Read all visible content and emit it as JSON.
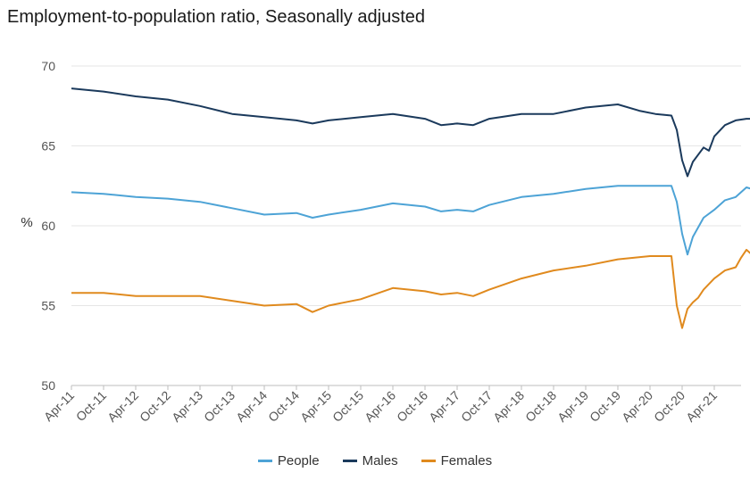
{
  "chart_data": {
    "type": "line",
    "title": "Employment-to-population ratio, Seasonally adjusted",
    "ylabel": "%",
    "xlabel": "",
    "ylim": [
      50,
      70
    ],
    "yticks": [
      "70",
      "65",
      "60",
      "55",
      "50"
    ],
    "xticks": [
      "Apr-11",
      "Oct-11",
      "Apr-12",
      "Oct-12",
      "Apr-13",
      "Oct-13",
      "Apr-14",
      "Oct-14",
      "Apr-15",
      "Oct-15",
      "Apr-16",
      "Oct-16",
      "Apr-17",
      "Oct-17",
      "Apr-18",
      "Oct-18",
      "Apr-19",
      "Oct-19",
      "Apr-20",
      "Oct-20",
      "Apr-21"
    ],
    "grid": true,
    "legend_position": "bottom",
    "series": [
      {
        "name": "People",
        "color": "#4da3d6",
        "points": [
          [
            0,
            62.1
          ],
          [
            6,
            62.0
          ],
          [
            12,
            61.8
          ],
          [
            18,
            61.7
          ],
          [
            24,
            61.5
          ],
          [
            30,
            61.1
          ],
          [
            36,
            60.7
          ],
          [
            42,
            60.8
          ],
          [
            45,
            60.5
          ],
          [
            48,
            60.7
          ],
          [
            54,
            61.0
          ],
          [
            60,
            61.4
          ],
          [
            66,
            61.2
          ],
          [
            69,
            60.9
          ],
          [
            72,
            61.0
          ],
          [
            75,
            60.9
          ],
          [
            78,
            61.3
          ],
          [
            84,
            61.8
          ],
          [
            90,
            62.0
          ],
          [
            96,
            62.3
          ],
          [
            102,
            62.5
          ],
          [
            108,
            62.5
          ],
          [
            112,
            62.5
          ],
          [
            113,
            61.5
          ],
          [
            114,
            59.5
          ],
          [
            115,
            58.2
          ],
          [
            116,
            59.3
          ],
          [
            117,
            59.9
          ],
          [
            118,
            60.5
          ],
          [
            120,
            61.0
          ],
          [
            122,
            61.6
          ],
          [
            124,
            61.8
          ],
          [
            126,
            62.4
          ],
          [
            127,
            62.3
          ]
        ]
      },
      {
        "name": "Males",
        "color": "#1b3a5c",
        "points": [
          [
            0,
            68.6
          ],
          [
            6,
            68.4
          ],
          [
            12,
            68.1
          ],
          [
            18,
            67.9
          ],
          [
            24,
            67.5
          ],
          [
            30,
            67.0
          ],
          [
            36,
            66.8
          ],
          [
            42,
            66.6
          ],
          [
            45,
            66.4
          ],
          [
            48,
            66.6
          ],
          [
            54,
            66.8
          ],
          [
            60,
            67.0
          ],
          [
            66,
            66.7
          ],
          [
            69,
            66.3
          ],
          [
            72,
            66.4
          ],
          [
            75,
            66.3
          ],
          [
            78,
            66.7
          ],
          [
            84,
            67.0
          ],
          [
            90,
            67.0
          ],
          [
            96,
            67.4
          ],
          [
            102,
            67.6
          ],
          [
            106,
            67.2
          ],
          [
            109,
            67.0
          ],
          [
            112,
            66.9
          ],
          [
            113,
            66.0
          ],
          [
            114,
            64.1
          ],
          [
            115,
            63.1
          ],
          [
            116,
            64.0
          ],
          [
            118,
            64.9
          ],
          [
            119,
            64.7
          ],
          [
            120,
            65.6
          ],
          [
            122,
            66.3
          ],
          [
            124,
            66.6
          ],
          [
            126,
            66.7
          ],
          [
            127,
            66.7
          ]
        ]
      },
      {
        "name": "Females",
        "color": "#e08a1e",
        "points": [
          [
            0,
            55.8
          ],
          [
            6,
            55.8
          ],
          [
            12,
            55.6
          ],
          [
            18,
            55.6
          ],
          [
            24,
            55.6
          ],
          [
            30,
            55.3
          ],
          [
            36,
            55.0
          ],
          [
            42,
            55.1
          ],
          [
            45,
            54.6
          ],
          [
            48,
            55.0
          ],
          [
            54,
            55.4
          ],
          [
            60,
            56.1
          ],
          [
            66,
            55.9
          ],
          [
            69,
            55.7
          ],
          [
            72,
            55.8
          ],
          [
            75,
            55.6
          ],
          [
            78,
            56.0
          ],
          [
            84,
            56.7
          ],
          [
            90,
            57.2
          ],
          [
            96,
            57.5
          ],
          [
            102,
            57.9
          ],
          [
            108,
            58.1
          ],
          [
            112,
            58.1
          ],
          [
            113,
            55.0
          ],
          [
            114,
            53.6
          ],
          [
            115,
            54.8
          ],
          [
            116,
            55.2
          ],
          [
            117,
            55.5
          ],
          [
            118,
            56.0
          ],
          [
            120,
            56.7
          ],
          [
            122,
            57.2
          ],
          [
            124,
            57.4
          ],
          [
            125,
            58.0
          ],
          [
            126,
            58.5
          ],
          [
            127,
            58.2
          ]
        ]
      }
    ]
  }
}
